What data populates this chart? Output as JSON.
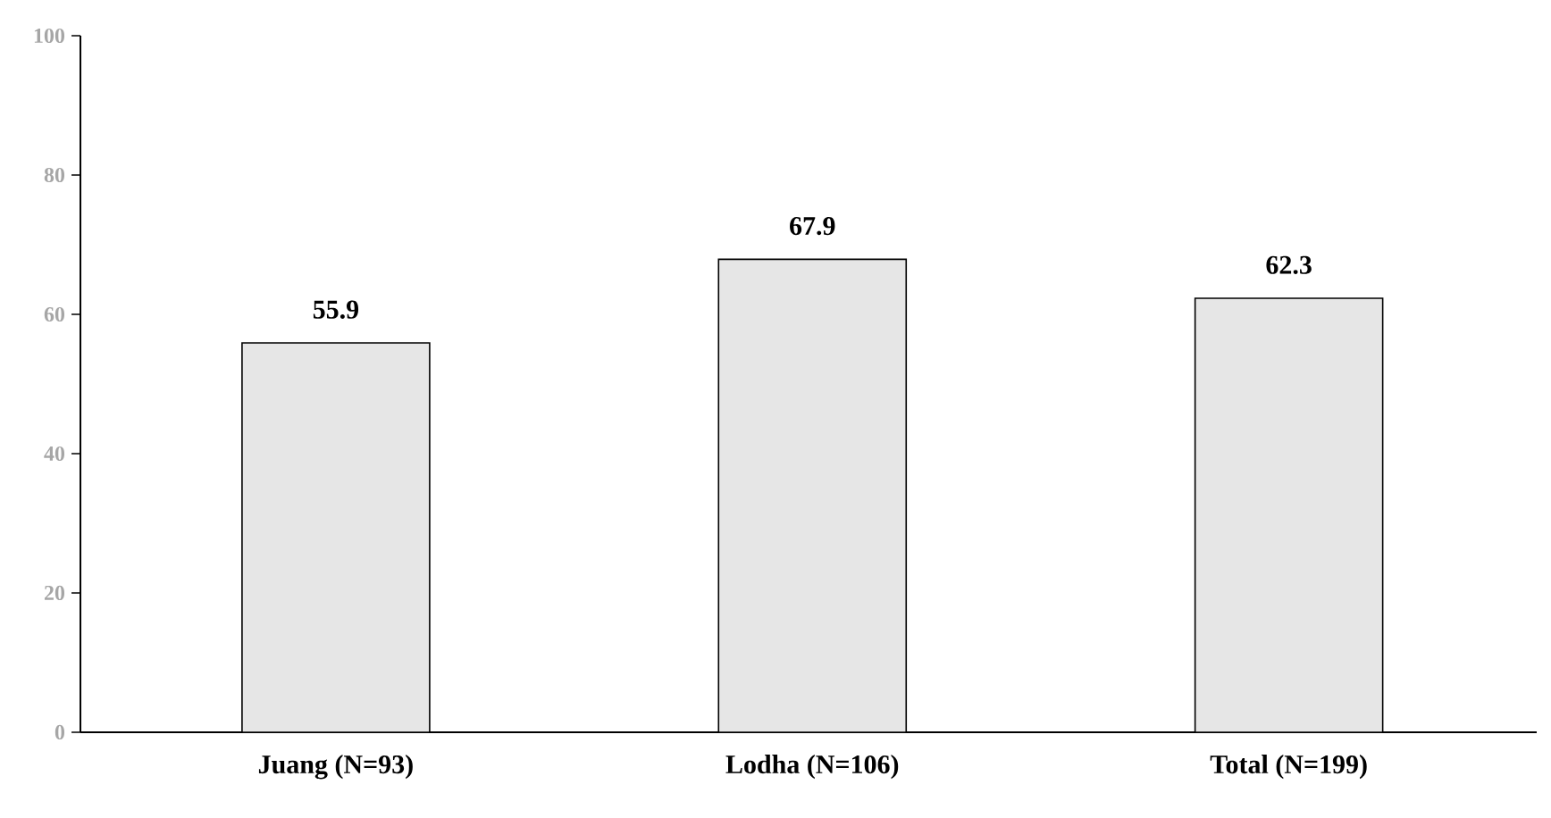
{
  "chart_data": {
    "type": "bar",
    "categories": [
      "Juang (N=93)",
      "Lodha (N=106)",
      "Total (N=199)"
    ],
    "values": [
      55.9,
      67.9,
      62.3
    ],
    "color": "#e6e6e6",
    "ylim": [
      0,
      100
    ],
    "yticks": [
      0,
      20,
      40,
      60,
      80,
      100
    ],
    "data_labels": true,
    "grid": false
  }
}
